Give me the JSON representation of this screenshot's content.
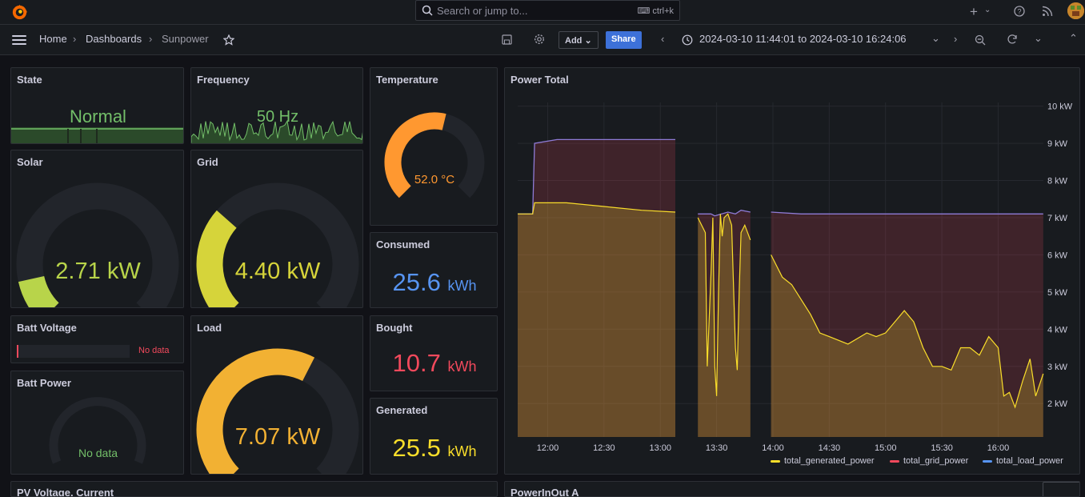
{
  "search": {
    "placeholder": "Search or jump to...",
    "shortcut": "ctrl+k"
  },
  "breadcrumb": {
    "home": "Home",
    "dashboards": "Dashboards",
    "current": "Sunpower"
  },
  "toolbar": {
    "add_label": "Add",
    "share_label": "Share",
    "time_range": "2024-03-10 11:44:01 to 2024-03-10 16:24:06"
  },
  "panels": {
    "state": {
      "title": "State",
      "value": "Normal"
    },
    "frequency": {
      "title": "Frequency",
      "value": "50 Hz"
    },
    "temperature": {
      "title": "Temperature",
      "value": "52.0 °C",
      "gauge_fraction": 0.55
    },
    "solar": {
      "title": "Solar",
      "value": "2.71",
      "unit": "kW",
      "gauge_fraction": 0.12
    },
    "grid": {
      "title": "Grid",
      "value": "4.40",
      "unit": "kW",
      "gauge_fraction": 0.32
    },
    "batt_voltage": {
      "title": "Batt Voltage",
      "value": "No data"
    },
    "batt_power": {
      "title": "Batt Power",
      "value": "No data"
    },
    "load": {
      "title": "Load",
      "value": "7.07",
      "unit": "kW",
      "gauge_fraction": 0.6
    },
    "consumed": {
      "title": "Consumed",
      "value": "25.6",
      "unit": "kWh"
    },
    "bought": {
      "title": "Bought",
      "value": "10.7",
      "unit": "kWh"
    },
    "generated": {
      "title": "Generated",
      "value": "25.5",
      "unit": "kWh"
    },
    "pv_voltage": {
      "title": "PV Voltage, Current"
    },
    "powerinout": {
      "title": "PowerInOut A"
    }
  },
  "colors": {
    "green": "#73bf69",
    "yellow": "#fade2a",
    "red": "#f2495c",
    "blue": "#5794f2",
    "orange": "#ff9830",
    "lime": "#b8d44a",
    "olive": "#d6d43a",
    "amber": "#f2b133"
  },
  "chart_data": {
    "type": "area",
    "title": "Power Total",
    "x_ticks": [
      "12:00",
      "12:30",
      "13:00",
      "13:30",
      "14:00",
      "14:30",
      "15:00",
      "15:30",
      "16:00"
    ],
    "y_ticks": [
      "2 kW",
      "3 kW",
      "4 kW",
      "5 kW",
      "6 kW",
      "7 kW",
      "8 kW",
      "9 kW",
      "10 kW"
    ],
    "ylim": [
      1.1,
      10.1
    ],
    "series": [
      {
        "name": "total_generated_power",
        "color": "#fade2a"
      },
      {
        "name": "total_grid_power",
        "color": "#f2495c"
      },
      {
        "name": "total_load_power",
        "color": "#5794f2"
      }
    ],
    "load": [
      [
        "11:44",
        7.1
      ],
      [
        "11:52",
        7.1
      ],
      [
        "11:53",
        9.0
      ],
      [
        "12:05",
        9.1
      ],
      [
        "12:30",
        9.1
      ],
      [
        "12:45",
        9.1
      ],
      [
        "13:08",
        9.1
      ],
      null,
      [
        "13:20",
        7.1
      ],
      [
        "13:27",
        7.1
      ],
      [
        "13:29",
        7.05
      ],
      [
        "13:36",
        7.15
      ],
      [
        "13:40",
        7.1
      ],
      [
        "13:43",
        7.2
      ],
      [
        "13:48",
        7.15
      ],
      null,
      [
        "13:59",
        7.15
      ],
      [
        "14:15",
        7.1
      ],
      [
        "14:45",
        7.1
      ],
      [
        "15:15",
        7.1
      ],
      [
        "15:45",
        7.1
      ],
      [
        "16:15",
        7.1
      ],
      [
        "16:24",
        7.1
      ]
    ],
    "generated": [
      [
        "11:44",
        7.1
      ],
      [
        "11:52",
        7.1
      ],
      [
        "11:53",
        7.4
      ],
      [
        "12:10",
        7.4
      ],
      [
        "12:30",
        7.3
      ],
      [
        "12:50",
        7.2
      ],
      [
        "13:08",
        7.15
      ],
      null,
      [
        "13:20",
        7.0
      ],
      [
        "13:24",
        6.6
      ],
      [
        "13:25",
        3.0
      ],
      [
        "13:27",
        5.5
      ],
      [
        "13:28",
        7.0
      ],
      [
        "13:29",
        3.0
      ],
      [
        "13:30",
        2.2
      ],
      [
        "13:31",
        5.0
      ],
      [
        "13:32",
        7.1
      ],
      [
        "13:33",
        6.5
      ],
      [
        "13:34",
        7.0
      ],
      [
        "13:36",
        7.1
      ],
      [
        "13:38",
        6.8
      ],
      [
        "13:40",
        3.5
      ],
      [
        "13:41",
        2.9
      ],
      [
        "13:42",
        5.0
      ],
      [
        "13:43",
        6.6
      ],
      [
        "13:45",
        6.8
      ],
      [
        "13:48",
        6.4
      ],
      null,
      [
        "13:59",
        6.0
      ],
      [
        "14:05",
        5.4
      ],
      [
        "14:10",
        5.2
      ],
      [
        "14:15",
        4.8
      ],
      [
        "14:20",
        4.4
      ],
      [
        "14:25",
        3.9
      ],
      [
        "14:30",
        3.8
      ],
      [
        "14:40",
        3.6
      ],
      [
        "14:50",
        3.9
      ],
      [
        "14:55",
        3.8
      ],
      [
        "15:00",
        3.9
      ],
      [
        "15:05",
        4.2
      ],
      [
        "15:10",
        4.5
      ],
      [
        "15:15",
        4.2
      ],
      [
        "15:20",
        3.5
      ],
      [
        "15:25",
        3.0
      ],
      [
        "15:30",
        3.0
      ],
      [
        "15:35",
        2.9
      ],
      [
        "15:40",
        3.5
      ],
      [
        "15:45",
        3.5
      ],
      [
        "15:50",
        3.3
      ],
      [
        "15:55",
        3.8
      ],
      [
        "16:00",
        3.5
      ],
      [
        "16:03",
        2.2
      ],
      [
        "16:06",
        2.3
      ],
      [
        "16:09",
        1.9
      ],
      [
        "16:13",
        2.6
      ],
      [
        "16:17",
        3.2
      ],
      [
        "16:20",
        2.2
      ],
      [
        "16:24",
        2.8
      ]
    ]
  }
}
